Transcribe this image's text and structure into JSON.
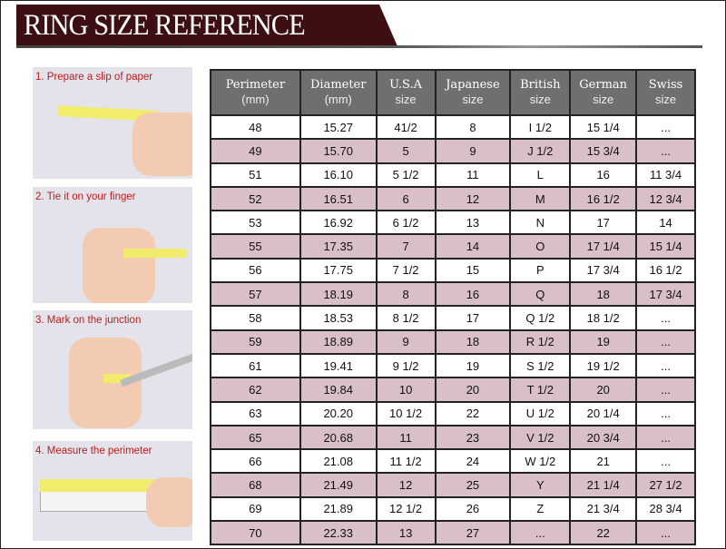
{
  "title": "RING SIZE REFERENCE",
  "steps": [
    "1. Prepare a slip of paper",
    "2. Tie it on your finger",
    "3. Mark on the junction",
    "4. Measure the perimeter"
  ],
  "headers": [
    [
      "Perimeter",
      "(mm)"
    ],
    [
      "Diameter",
      "(mm)"
    ],
    [
      "U.S.A",
      "size"
    ],
    [
      "Japanese",
      "size"
    ],
    [
      "British",
      "size"
    ],
    [
      "German",
      "size"
    ],
    [
      "Swiss",
      "size"
    ]
  ],
  "rows": [
    [
      "48",
      "15.27",
      "41/2",
      "8",
      "I 1/2",
      "15 1/4",
      "..."
    ],
    [
      "49",
      "15.70",
      "5",
      "9",
      "J 1/2",
      "15 3/4",
      "..."
    ],
    [
      "51",
      "16.10",
      "5 1/2",
      "11",
      "L",
      "16",
      "11 3/4"
    ],
    [
      "52",
      "16.51",
      "6",
      "12",
      "M",
      "16 1/2",
      "12 3/4"
    ],
    [
      "53",
      "16.92",
      "6 1/2",
      "13",
      "N",
      "17",
      "14"
    ],
    [
      "55",
      "17.35",
      "7",
      "14",
      "O",
      "17 1/4",
      "15 1/4"
    ],
    [
      "56",
      "17.75",
      "7 1/2",
      "15",
      "P",
      "17 3/4",
      "16 1/2"
    ],
    [
      "57",
      "18.19",
      "8",
      "16",
      "Q",
      "18",
      "17 3/4"
    ],
    [
      "58",
      "18.53",
      "8 1/2",
      "17",
      "Q 1/2",
      "18 1/2",
      "..."
    ],
    [
      "59",
      "18.89",
      "9",
      "18",
      "R 1/2",
      "19",
      "..."
    ],
    [
      "61",
      "19.41",
      "9 1/2",
      "19",
      "S 1/2",
      "19 1/2",
      "..."
    ],
    [
      "62",
      "19.84",
      "10",
      "20",
      "T 1/2",
      "20",
      "..."
    ],
    [
      "63",
      "20.20",
      "10 1/2",
      "22",
      "U 1/2",
      "20 1/4",
      "..."
    ],
    [
      "65",
      "20.68",
      "11",
      "23",
      "V 1/2",
      "20 3/4",
      "..."
    ],
    [
      "66",
      "21.08",
      "11 1/2",
      "24",
      "W 1/2",
      "21",
      "..."
    ],
    [
      "68",
      "21.49",
      "12",
      "25",
      "Y",
      "21 1/4",
      "27 1/2"
    ],
    [
      "69",
      "21.89",
      "12 1/2",
      "26",
      "Z",
      "21 3/4",
      "28 3/4"
    ],
    [
      "70",
      "22.33",
      "13",
      "27",
      "...",
      "22",
      "..."
    ]
  ],
  "colors": {
    "banner": "#3d0f12",
    "header": "#6f6f72",
    "alt_row": "#d9bfc6",
    "step_label": "#b8201e"
  }
}
